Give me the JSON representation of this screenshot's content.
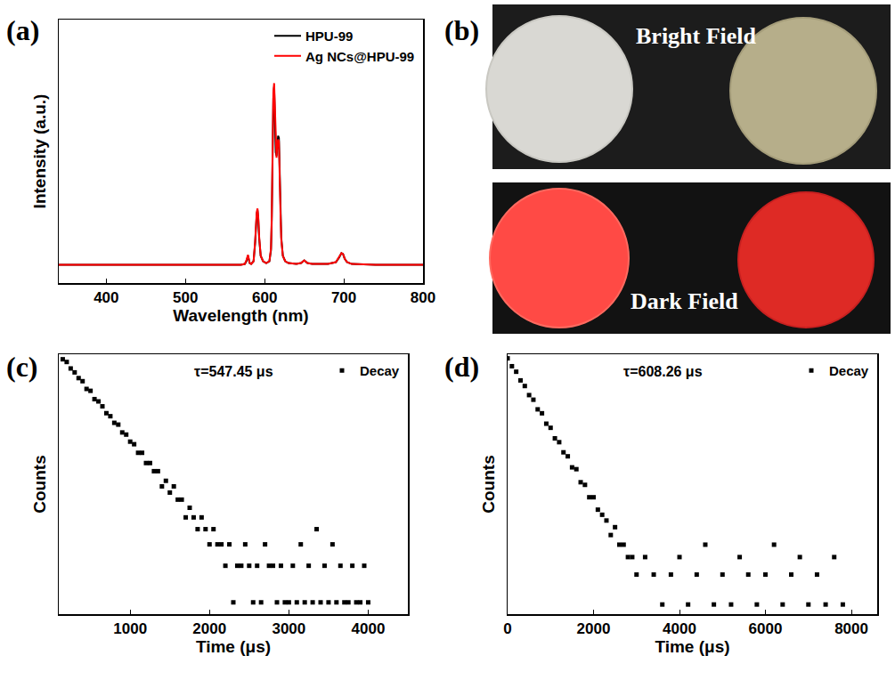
{
  "chart_data": [
    {
      "panel": "(a)",
      "type": "line",
      "x_label": "Wavelength (nm)",
      "y_label": "Intensity (a.u.)",
      "x": [
        340,
        400,
        500,
        560,
        570,
        575,
        577,
        579,
        581,
        583,
        586,
        588,
        589,
        590,
        591,
        592,
        593,
        595,
        598,
        602,
        606,
        608,
        609,
        610,
        611,
        612,
        613,
        614,
        615,
        616,
        617,
        618,
        619,
        620,
        621,
        623,
        626,
        630,
        640,
        646,
        650,
        654,
        660,
        680,
        690,
        694,
        697,
        699,
        701,
        704,
        710,
        740,
        800
      ],
      "series": [
        {
          "name": "HPU-99",
          "color": "#000000",
          "values": [
            0,
            0,
            0,
            0,
            0,
            0.005,
            0.02,
            0.05,
            0.01,
            0.005,
            0.02,
            0.12,
            0.22,
            0.28,
            0.3,
            0.25,
            0.15,
            0.05,
            0.02,
            0.01,
            0.02,
            0.08,
            0.25,
            0.6,
            0.92,
            0.98,
            0.85,
            0.62,
            0.6,
            0.68,
            0.71,
            0.7,
            0.55,
            0.3,
            0.15,
            0.05,
            0.02,
            0.01,
            0.005,
            0.01,
            0.025,
            0.01,
            0.005,
            0.005,
            0.015,
            0.04,
            0.065,
            0.06,
            0.035,
            0.015,
            0.005,
            0,
            0
          ]
        },
        {
          "name": "Ag NCs@HPU-99",
          "color": "#ff0000",
          "values": [
            0,
            0,
            0,
            0,
            0,
            0.005,
            0.025,
            0.055,
            0.012,
            0.005,
            0.02,
            0.13,
            0.23,
            0.29,
            0.31,
            0.26,
            0.16,
            0.05,
            0.02,
            0.01,
            0.02,
            0.09,
            0.27,
            0.63,
            0.95,
            1.0,
            0.86,
            0.62,
            0.59,
            0.66,
            0.69,
            0.68,
            0.54,
            0.29,
            0.14,
            0.05,
            0.02,
            0.01,
            0.005,
            0.01,
            0.025,
            0.01,
            0.005,
            0.005,
            0.015,
            0.04,
            0.065,
            0.06,
            0.035,
            0.015,
            0.005,
            0,
            0
          ]
        }
      ],
      "xlim": [
        340,
        800
      ],
      "xticks": [
        400,
        500,
        600,
        700,
        800
      ],
      "ylim": [
        -0.1,
        1.35
      ],
      "tick_labels": "x",
      "grid": false,
      "legend": "top right"
    },
    {
      "panel": "(c)",
      "type": "scatter",
      "x_label": "Time (μs)",
      "y_label": "Counts",
      "annotations": [
        "τ=547.45 μs"
      ],
      "log": "y",
      "series": [
        {
          "name": "Decay",
          "color": "#000000",
          "marker": "square",
          "x": [
            150,
            200,
            250,
            300,
            350,
            400,
            450,
            500,
            550,
            600,
            650,
            700,
            750,
            800,
            850,
            900,
            950,
            1000,
            1050,
            1100,
            1150,
            1200,
            1250,
            1300,
            1350,
            1400,
            1450,
            1500,
            1550,
            1600,
            1650,
            1700,
            1750,
            1800,
            1850,
            1900,
            1950,
            2000,
            2050,
            2100,
            2150,
            2200,
            2250,
            2300,
            2350,
            2400,
            2450,
            2500,
            2550,
            2600,
            2650,
            2700,
            2750,
            2800,
            2850,
            2900,
            2950,
            3000,
            3050,
            3100,
            3150,
            3200,
            3250,
            3300,
            3350,
            3400,
            3450,
            3500,
            3550,
            3600,
            3650,
            3700,
            3750,
            3800,
            3850,
            3900,
            3950,
            4000
          ],
          "values": [
            100,
            95,
            84,
            78,
            70,
            66,
            57,
            55,
            47,
            45,
            41,
            36,
            34,
            30,
            29,
            25,
            24,
            21,
            20,
            17,
            17,
            14,
            14,
            12,
            12,
            9,
            10,
            8,
            9,
            7,
            7,
            5,
            6,
            5,
            4,
            5,
            4,
            3,
            4,
            3,
            3,
            2,
            3,
            1,
            2,
            2,
            3,
            2,
            1,
            2,
            1,
            3,
            2,
            2,
            1,
            2,
            1,
            1,
            2,
            1,
            3,
            1,
            2,
            1,
            4,
            1,
            2,
            1,
            3,
            1,
            2,
            1,
            1,
            2,
            1,
            1,
            2,
            1
          ]
        }
      ],
      "xlim": [
        100,
        4500
      ],
      "xticks": [
        1000,
        2000,
        3000,
        4000
      ],
      "ylim": [
        0.8,
        110
      ],
      "tick_labels": "x",
      "grid": false,
      "legend": "top right"
    },
    {
      "panel": "(d)",
      "type": "scatter",
      "x_label": "Time (μs)",
      "y_label": "Counts",
      "annotations": [
        "τ=608.26 μs"
      ],
      "log": "y",
      "series": [
        {
          "name": "Decay",
          "color": "#000000",
          "marker": "square",
          "x": [
            0,
            100,
            200,
            300,
            400,
            500,
            600,
            700,
            800,
            900,
            1000,
            1100,
            1200,
            1300,
            1400,
            1500,
            1600,
            1700,
            1800,
            1900,
            2000,
            2100,
            2200,
            2300,
            2400,
            2500,
            2600,
            2700,
            2800,
            2900,
            3000,
            3200,
            3400,
            3600,
            3800,
            4000,
            4200,
            4400,
            4600,
            4800,
            5000,
            5200,
            5400,
            5600,
            5800,
            6000,
            6200,
            6400,
            6600,
            6800,
            7000,
            7200,
            7400,
            7600,
            7800
          ],
          "values": [
            300,
            250,
            220,
            180,
            158,
            128,
            115,
            92,
            84,
            66,
            60,
            47,
            43,
            34,
            31,
            24,
            23,
            17,
            16,
            12,
            12,
            9,
            8,
            7,
            5,
            6,
            4,
            4,
            3,
            3,
            2,
            3,
            2,
            1,
            2,
            3,
            1,
            2,
            4,
            1,
            2,
            1,
            3,
            2,
            1,
            2,
            4,
            1,
            2,
            3,
            1,
            2,
            1,
            3,
            1
          ]
        }
      ],
      "xlim": [
        0,
        8600
      ],
      "xticks": [
        0,
        2000,
        4000,
        6000,
        8000
      ],
      "ylim": [
        0.8,
        330
      ],
      "tick_labels": "x",
      "grid": false,
      "legend": "top right"
    }
  ],
  "photo_panel": {
    "panel": "(b)",
    "top_text": "Bright Field",
    "bottom_text": "Dark Field"
  }
}
